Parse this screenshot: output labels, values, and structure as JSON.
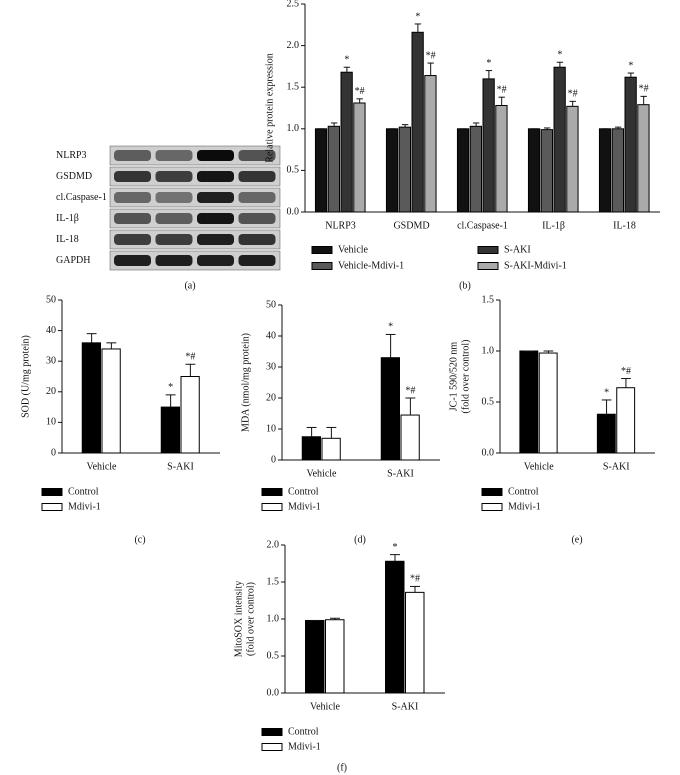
{
  "blot": {
    "labels": [
      "NLRP3",
      "GSDMD",
      "cl.Caspase-1",
      "IL-1β",
      "IL-18",
      "GAPDH"
    ],
    "caption": "(a)"
  },
  "chart_data": [
    {
      "type": "bar",
      "ylabel": "Relative protein expression",
      "caption": "(b)",
      "categories": [
        "NLRP3",
        "GSDMD",
        "cl.Caspase-1",
        "IL-1β",
        "IL-18"
      ],
      "ylim": [
        0,
        2.5
      ],
      "yticks": [
        {
          "value": 0,
          "label": "0.0"
        },
        {
          "value": 0.5,
          "label": "0.5"
        },
        {
          "value": 1,
          "label": "1.0"
        },
        {
          "value": 1.5,
          "label": "1.5"
        },
        {
          "value": 2,
          "label": "2.0"
        },
        {
          "value": 2.5,
          "label": "2.5"
        }
      ],
      "series": [
        {
          "name": "Vehicle",
          "color": "#111111",
          "values": [
            1.0,
            1.0,
            1.0,
            1.0,
            1.0
          ],
          "errors": [
            0,
            0,
            0,
            0,
            0
          ],
          "annotations": [
            null,
            null,
            null,
            null,
            null
          ]
        },
        {
          "name": "Vehicle-Mdivi-1",
          "color": "#5a5a5a",
          "values": [
            1.03,
            1.02,
            1.03,
            0.99,
            1.0
          ],
          "errors": [
            0.04,
            0.03,
            0.04,
            0.02,
            0.02
          ],
          "annotations": [
            null,
            null,
            null,
            null,
            null
          ]
        },
        {
          "name": "S-AKI",
          "color": "#333333",
          "values": [
            1.68,
            2.16,
            1.6,
            1.74,
            1.62
          ],
          "errors": [
            0.06,
            0.1,
            0.1,
            0.06,
            0.05
          ],
          "annotations": [
            "*",
            "*",
            "*",
            "*",
            "*"
          ]
        },
        {
          "name": "S-AKI-Mdivi-1",
          "color": "#aaaaaa",
          "values": [
            1.31,
            1.64,
            1.28,
            1.27,
            1.29
          ],
          "errors": [
            0.05,
            0.15,
            0.1,
            0.06,
            0.1
          ],
          "annotations": [
            "*#",
            "*#",
            "*#",
            "*#",
            "*#"
          ]
        }
      ]
    },
    {
      "type": "bar",
      "ylabel": "SOD (U/mg protein)",
      "caption": "(c)",
      "categories": [
        "Vehicle",
        "S-AKI"
      ],
      "ylim": [
        0,
        50
      ],
      "yticks": [
        0,
        10,
        20,
        30,
        40,
        50
      ],
      "series": [
        {
          "name": "Control",
          "color": "#000000",
          "values": [
            36,
            15
          ],
          "errors": [
            3,
            4
          ],
          "annotations": [
            null,
            "*"
          ]
        },
        {
          "name": "Mdivi-1",
          "color": "#ffffff",
          "values": [
            34,
            25
          ],
          "errors": [
            2,
            4
          ],
          "annotations": [
            null,
            "*#"
          ]
        }
      ]
    },
    {
      "type": "bar",
      "ylabel": "MDA (nmol/mg protein)",
      "caption": "(d)",
      "categories": [
        "Vehicle",
        "S-AKI"
      ],
      "ylim": [
        0,
        50
      ],
      "yticks": [
        0,
        10,
        20,
        30,
        40,
        50
      ],
      "series": [
        {
          "name": "Control",
          "color": "#000000",
          "values": [
            7.5,
            33
          ],
          "errors": [
            3,
            7.5
          ],
          "annotations": [
            null,
            "*"
          ]
        },
        {
          "name": "Mdivi-1",
          "color": "#ffffff",
          "values": [
            7,
            14.5
          ],
          "errors": [
            3.5,
            5.5
          ],
          "annotations": [
            null,
            "*#"
          ]
        }
      ]
    },
    {
      "type": "bar",
      "ylabel": [
        "JC-1 590/520 nm",
        "(fold over control)"
      ],
      "caption": "(e)",
      "categories": [
        "Vehicle",
        "S-AKI"
      ],
      "ylim": [
        0,
        1.5
      ],
      "yticks": [
        {
          "value": 0,
          "label": "0.0"
        },
        {
          "value": 0.5,
          "label": "0.5"
        },
        {
          "value": 1,
          "label": "1.0"
        },
        {
          "value": 1.5,
          "label": "1.5"
        }
      ],
      "series": [
        {
          "name": "Control",
          "color": "#000000",
          "values": [
            1.0,
            0.38
          ],
          "errors": [
            0,
            0.14
          ],
          "annotations": [
            null,
            "*"
          ]
        },
        {
          "name": "Mdivi-1",
          "color": "#ffffff",
          "values": [
            0.98,
            0.64
          ],
          "errors": [
            0.02,
            0.09
          ],
          "annotations": [
            null,
            "*#"
          ]
        }
      ]
    },
    {
      "type": "bar",
      "ylabel": [
        "MitoSOX intensity",
        "(fold over control)"
      ],
      "caption": "(f)",
      "categories": [
        "Vehicle",
        "S-AKI"
      ],
      "ylim": [
        0,
        2
      ],
      "yticks": [
        {
          "value": 0,
          "label": "0.0"
        },
        {
          "value": 0.5,
          "label": "0.5"
        },
        {
          "value": 1,
          "label": "1.0"
        },
        {
          "value": 1.5,
          "label": "1.5"
        },
        {
          "value": 2,
          "label": "2.0"
        }
      ],
      "series": [
        {
          "name": "Control",
          "color": "#000000",
          "values": [
            0.98,
            1.78
          ],
          "errors": [
            0,
            0.09
          ],
          "annotations": [
            null,
            "*"
          ]
        },
        {
          "name": "Mdivi-1",
          "color": "#ffffff",
          "values": [
            0.99,
            1.36
          ],
          "errors": [
            0.02,
            0.08
          ],
          "annotations": [
            null,
            "*#"
          ]
        }
      ]
    }
  ]
}
